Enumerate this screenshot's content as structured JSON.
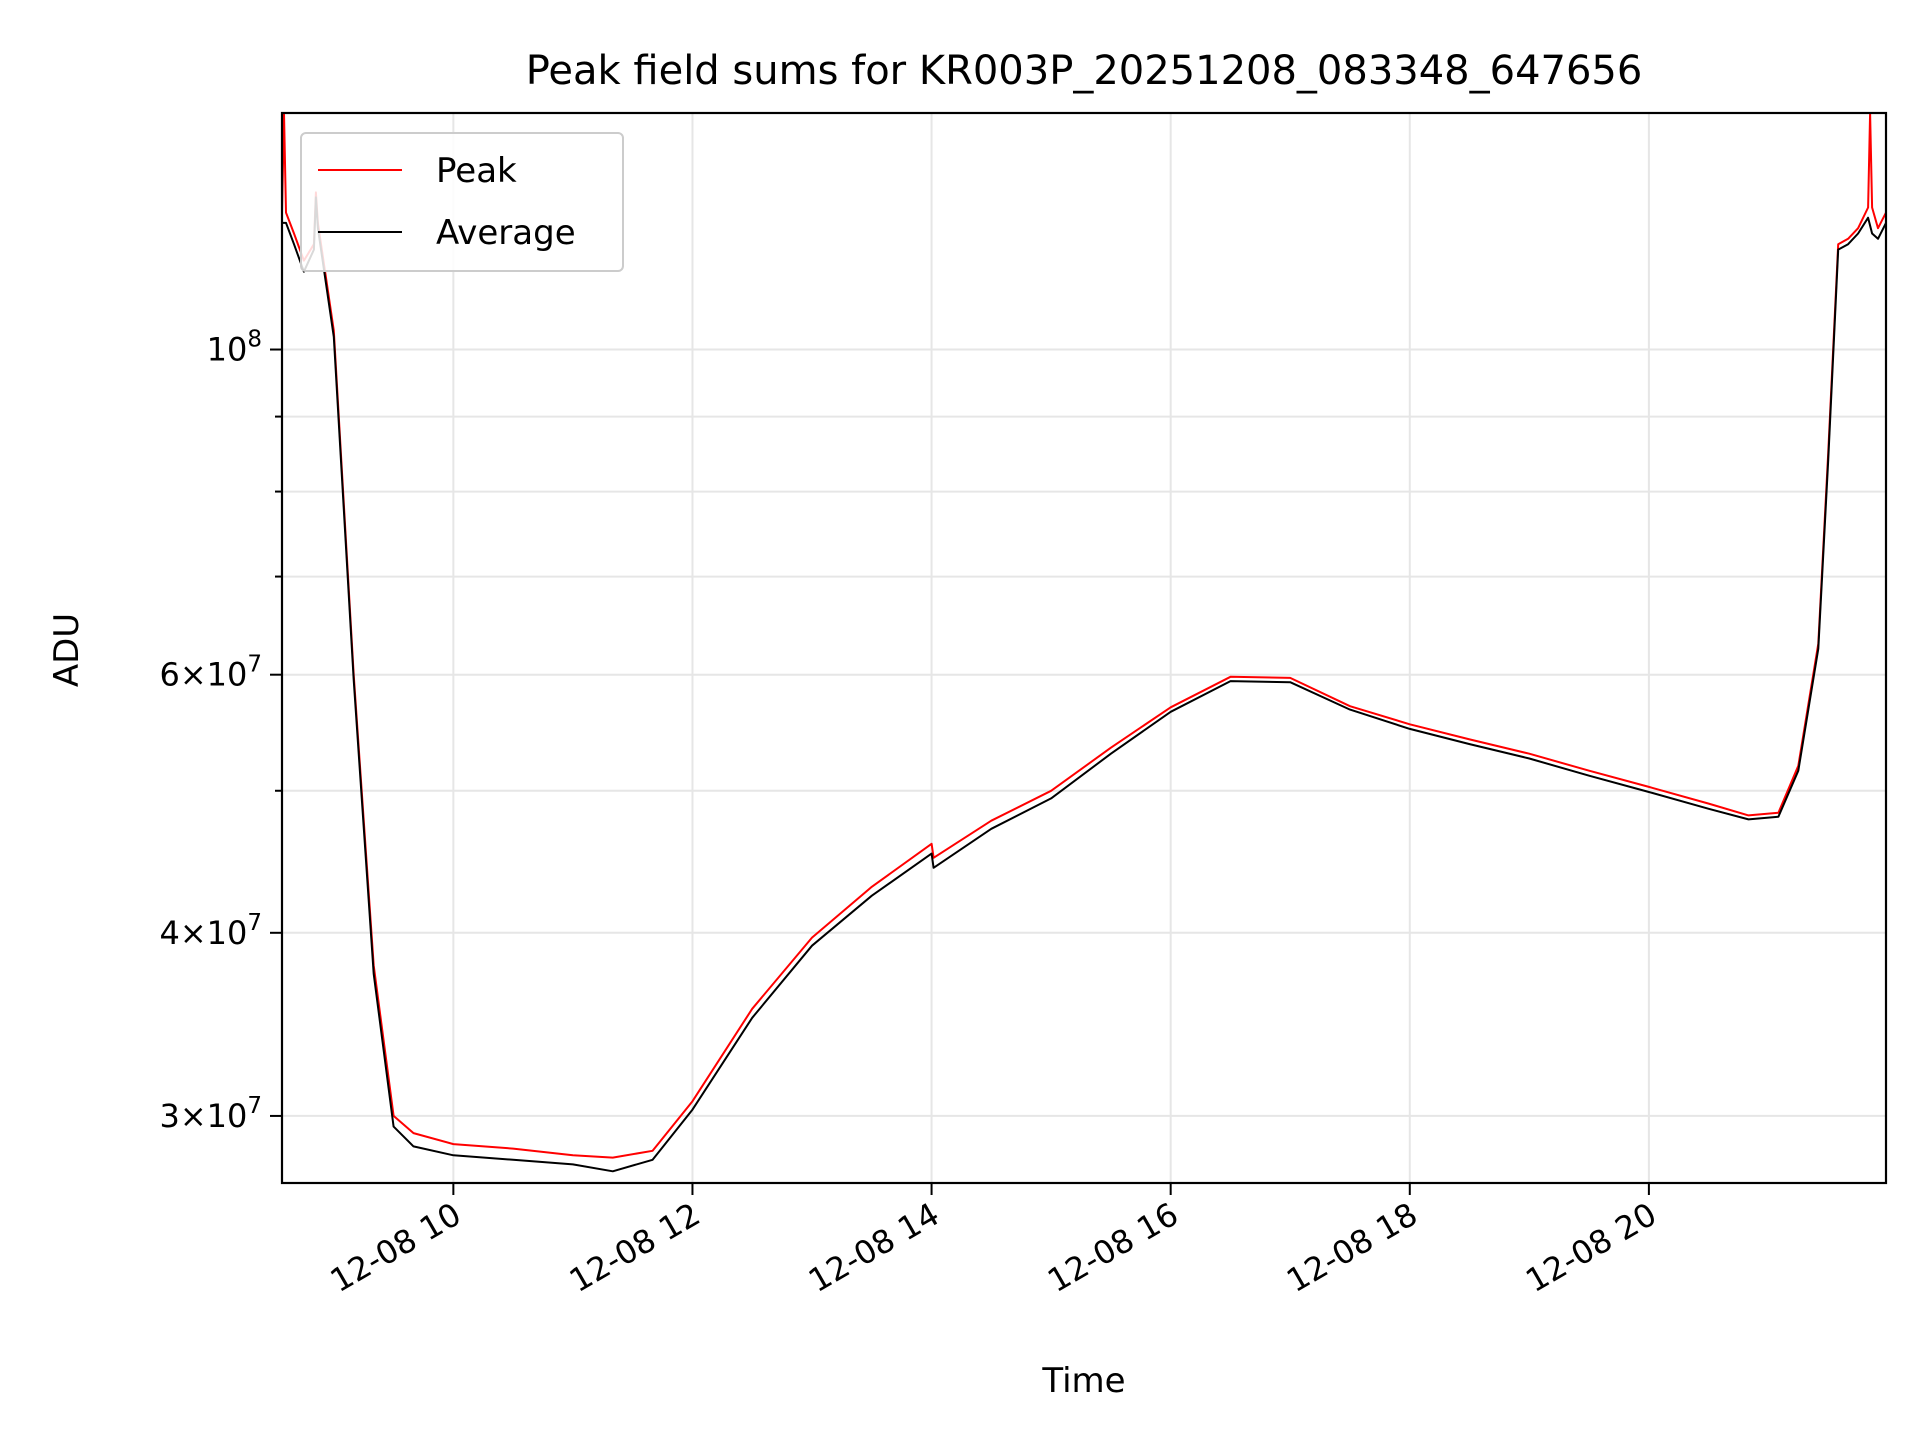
{
  "chart_data": {
    "type": "line",
    "title": "Peak field sums for KR003P_20251208_083348_647656",
    "xlabel": "Time",
    "ylabel": "ADU",
    "x_axis_type": "datetime",
    "y_scale": "log",
    "xlim": [
      "2025-12-08 08:34",
      "2025-12-08 21:59"
    ],
    "ylim": [
      27000000,
      145000000
    ],
    "x_ticks": [
      {
        "value": "2025-12-08 10:00",
        "label": "12-08 10"
      },
      {
        "value": "2025-12-08 12:00",
        "label": "12-08 12"
      },
      {
        "value": "2025-12-08 14:00",
        "label": "12-08 14"
      },
      {
        "value": "2025-12-08 16:00",
        "label": "12-08 16"
      },
      {
        "value": "2025-12-08 18:00",
        "label": "12-08 18"
      },
      {
        "value": "2025-12-08 20:00",
        "label": "12-08 20"
      }
    ],
    "y_ticks": [
      {
        "value": 30000000,
        "mantissa": "3",
        "base": "10",
        "exp": "7"
      },
      {
        "value": 40000000,
        "mantissa": "4",
        "base": "10",
        "exp": "7"
      },
      {
        "value": 60000000,
        "mantissa": "6",
        "base": "10",
        "exp": "7"
      },
      {
        "value": 100000000,
        "mantissa": "",
        "base": "10",
        "exp": "8"
      }
    ],
    "y_minor_ticks": [
      50000000,
      70000000,
      80000000,
      90000000
    ],
    "grid": true,
    "legend_position": "top-left",
    "series": [
      {
        "name": "Peak",
        "color": "#ff0000",
        "x": [
          "2025-12-08 08:34",
          "2025-12-08 08:35",
          "2025-12-08 08:36",
          "2025-12-08 08:40",
          "2025-12-08 08:45",
          "2025-12-08 08:50",
          "2025-12-08 08:51",
          "2025-12-08 08:52",
          "2025-12-08 09:00",
          "2025-12-08 09:10",
          "2025-12-08 09:20",
          "2025-12-08 09:30",
          "2025-12-08 09:40",
          "2025-12-08 10:00",
          "2025-12-08 10:30",
          "2025-12-08 11:00",
          "2025-12-08 11:20",
          "2025-12-08 11:40",
          "2025-12-08 12:00",
          "2025-12-08 12:30",
          "2025-12-08 13:00",
          "2025-12-08 13:30",
          "2025-12-08 14:00",
          "2025-12-08 14:01",
          "2025-12-08 14:30",
          "2025-12-08 15:00",
          "2025-12-08 15:30",
          "2025-12-08 16:00",
          "2025-12-08 16:30",
          "2025-12-08 17:00",
          "2025-12-08 17:30",
          "2025-12-08 18:00",
          "2025-12-08 18:30",
          "2025-12-08 19:00",
          "2025-12-08 19:30",
          "2025-12-08 20:00",
          "2025-12-08 20:30",
          "2025-12-08 20:50",
          "2025-12-08 21:05",
          "2025-12-08 21:15",
          "2025-12-08 21:25",
          "2025-12-08 21:30",
          "2025-12-08 21:35",
          "2025-12-08 21:40",
          "2025-12-08 21:45",
          "2025-12-08 21:50",
          "2025-12-08 21:51",
          "2025-12-08 21:52",
          "2025-12-08 21:55",
          "2025-12-08 21:59"
        ],
        "values": [
          124000000,
          145000000,
          124000000,
          120000000,
          115000000,
          118000000,
          128000000,
          122000000,
          103000000,
          60000000,
          38000000,
          30000000,
          29200000,
          28700000,
          28500000,
          28200000,
          28100000,
          28400000,
          30700000,
          35500000,
          39700000,
          43000000,
          46000000,
          45000000,
          47700000,
          50000000,
          53500000,
          57000000,
          59800000,
          59700000,
          57100000,
          55500000,
          54200000,
          53000000,
          51600000,
          50300000,
          49000000,
          48100000,
          48300000,
          52000000,
          63000000,
          85000000,
          118000000,
          119000000,
          121000000,
          125000000,
          145000000,
          125000000,
          121000000,
          124000000
        ]
      },
      {
        "name": "Average",
        "color": "#000000",
        "x": [
          "2025-12-08 08:34",
          "2025-12-08 08:36",
          "2025-12-08 08:40",
          "2025-12-08 08:45",
          "2025-12-08 08:50",
          "2025-12-08 08:51",
          "2025-12-08 08:52",
          "2025-12-08 09:00",
          "2025-12-08 09:10",
          "2025-12-08 09:20",
          "2025-12-08 09:30",
          "2025-12-08 09:40",
          "2025-12-08 10:00",
          "2025-12-08 10:30",
          "2025-12-08 11:00",
          "2025-12-08 11:20",
          "2025-12-08 11:40",
          "2025-12-08 12:00",
          "2025-12-08 12:30",
          "2025-12-08 13:00",
          "2025-12-08 13:30",
          "2025-12-08 14:00",
          "2025-12-08 14:01",
          "2025-12-08 14:30",
          "2025-12-08 15:00",
          "2025-12-08 15:30",
          "2025-12-08 16:00",
          "2025-12-08 16:30",
          "2025-12-08 17:00",
          "2025-12-08 17:30",
          "2025-12-08 18:00",
          "2025-12-08 18:30",
          "2025-12-08 19:00",
          "2025-12-08 19:30",
          "2025-12-08 20:00",
          "2025-12-08 20:30",
          "2025-12-08 20:50",
          "2025-12-08 21:05",
          "2025-12-08 21:15",
          "2025-12-08 21:25",
          "2025-12-08 21:30",
          "2025-12-08 21:35",
          "2025-12-08 21:40",
          "2025-12-08 21:45",
          "2025-12-08 21:50",
          "2025-12-08 21:52",
          "2025-12-08 21:55",
          "2025-12-08 21:59"
        ],
        "values": [
          122000000,
          122000000,
          118000000,
          113000000,
          117000000,
          127000000,
          121000000,
          102000000,
          59500000,
          37500000,
          29500000,
          28600000,
          28200000,
          28000000,
          27800000,
          27500000,
          28000000,
          30300000,
          35000000,
          39200000,
          42400000,
          45300000,
          44300000,
          47100000,
          49400000,
          53000000,
          56600000,
          59400000,
          59300000,
          56800000,
          55100000,
          53800000,
          52600000,
          51200000,
          49900000,
          48600000,
          47800000,
          48000000,
          51600000,
          62500000,
          84000000,
          117000000,
          118000000,
          120000000,
          123000000,
          120000000,
          119000000,
          122000000
        ]
      }
    ]
  }
}
